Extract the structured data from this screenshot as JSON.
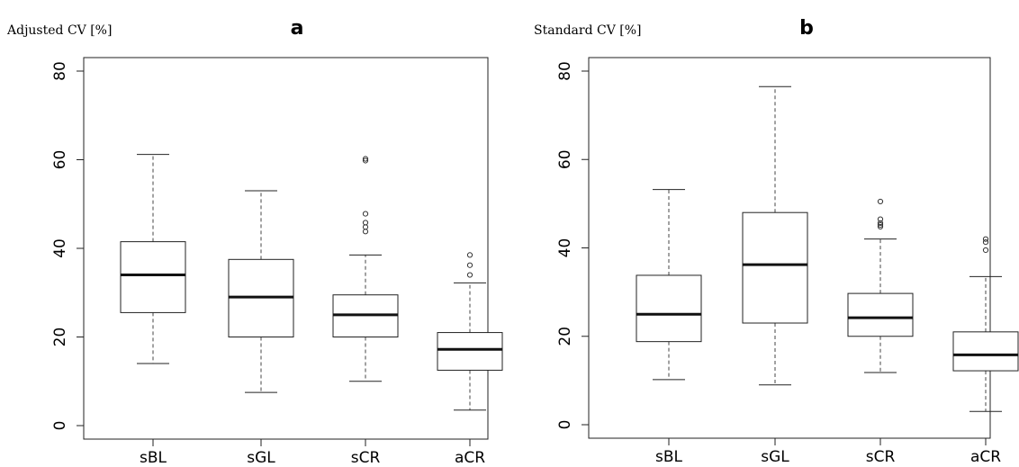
{
  "chart_data": [
    {
      "type": "box",
      "panel_letter": "a",
      "ylabel": "Adjusted CV [%]",
      "ylim": [
        0,
        80
      ],
      "yticks": [
        "0",
        "20",
        "40",
        "60",
        "80"
      ],
      "categories": [
        "sBL",
        "sGL",
        "sCR",
        "aCR"
      ],
      "boxes": [
        {
          "category": "sBL",
          "whisker_low": 14,
          "q1": 25.5,
          "median": 34,
          "q3": 41.5,
          "whisker_high": 61.2,
          "outliers": []
        },
        {
          "category": "sGL",
          "whisker_low": 7.5,
          "q1": 20,
          "median": 29,
          "q3": 37.5,
          "whisker_high": 53,
          "outliers": []
        },
        {
          "category": "sCR",
          "whisker_low": 10,
          "q1": 20,
          "median": 25,
          "q3": 29.5,
          "whisker_high": 38.5,
          "outliers": [
            43.8,
            44.8,
            45.8,
            47.8,
            59.8,
            60.2
          ]
        },
        {
          "category": "aCR",
          "whisker_low": 3.5,
          "q1": 12.5,
          "median": 17.2,
          "q3": 21,
          "whisker_high": 32.2,
          "outliers": [
            34,
            36.2,
            38.5
          ]
        }
      ]
    },
    {
      "type": "box",
      "panel_letter": "b",
      "ylabel": "Standard CV [%]",
      "ylim": [
        0,
        80
      ],
      "yticks": [
        "0",
        "20",
        "40",
        "60",
        "80"
      ],
      "categories": [
        "sBL",
        "sGL",
        "sCR",
        "aCR"
      ],
      "boxes": [
        {
          "category": "sBL",
          "whisker_low": 10.2,
          "q1": 18.8,
          "median": 25,
          "q3": 33.8,
          "whisker_high": 53.2,
          "outliers": []
        },
        {
          "category": "sGL",
          "whisker_low": 9,
          "q1": 23,
          "median": 36.2,
          "q3": 48,
          "whisker_high": 76.5,
          "outliers": []
        },
        {
          "category": "sCR",
          "whisker_low": 11.8,
          "q1": 20,
          "median": 24.2,
          "q3": 29.7,
          "whisker_high": 42,
          "outliers": [
            44.8,
            45.2,
            45.6,
            46.5,
            50.5
          ]
        },
        {
          "category": "aCR",
          "whisker_low": 3,
          "q1": 12.2,
          "median": 15.8,
          "q3": 21,
          "whisker_high": 33.5,
          "outliers": [
            39.5,
            41.3,
            42
          ]
        }
      ]
    }
  ]
}
